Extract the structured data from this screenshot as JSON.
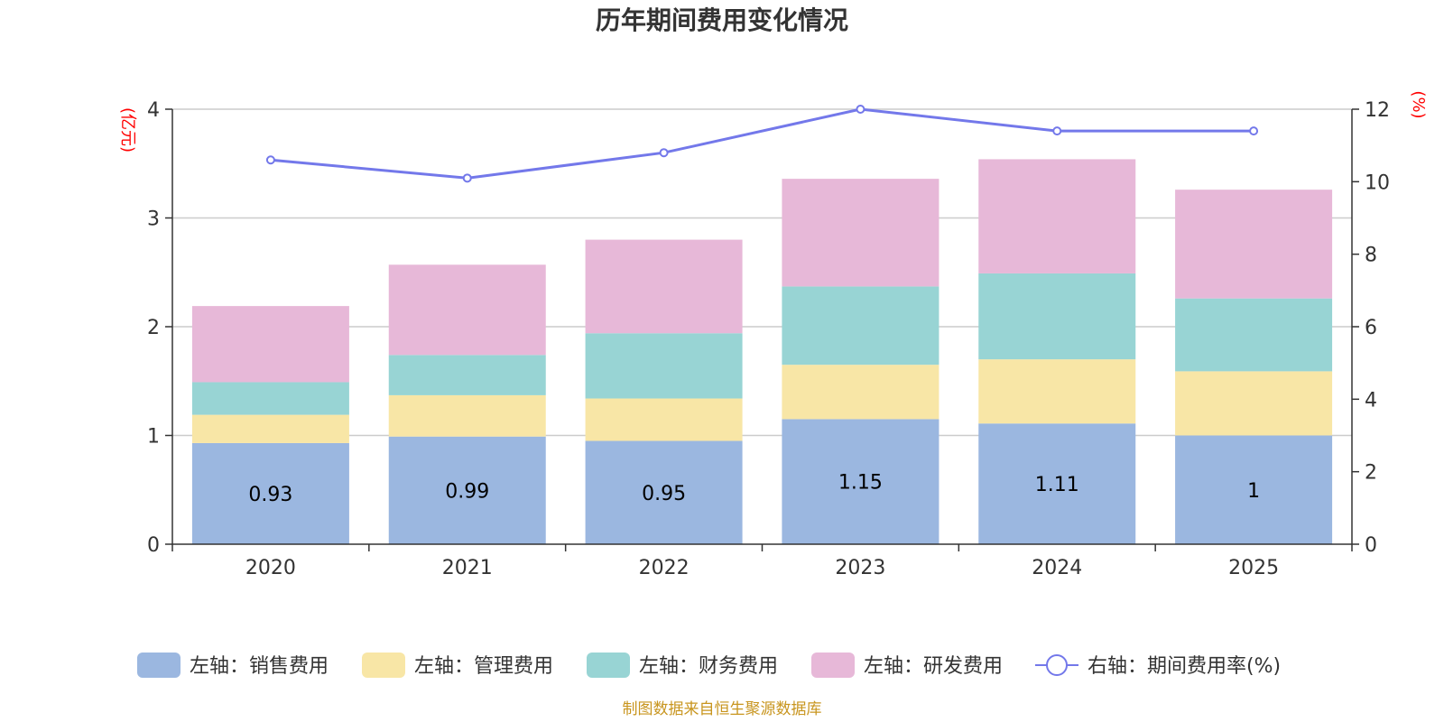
{
  "chart_data": {
    "type": "bar",
    "title": "历年期间费用变化情况",
    "categories": [
      "2020",
      "2021",
      "2022",
      "2023",
      "2024",
      "2025"
    ],
    "left_axis": {
      "unit": "(亿元)",
      "ylim": [
        0,
        4
      ],
      "ticks": [
        "0",
        "1",
        "2",
        "3",
        "4"
      ]
    },
    "right_axis": {
      "unit": "(%)",
      "ylim": [
        0,
        12
      ],
      "ticks": [
        "0",
        "2",
        "4",
        "6",
        "8",
        "10",
        "12"
      ]
    },
    "series": [
      {
        "name": "左轴：销售费用",
        "type": "bar",
        "axis": "left",
        "color": "#9bb7e0",
        "values": [
          0.93,
          0.99,
          0.95,
          1.15,
          1.11,
          1.0
        ],
        "labels": [
          "0.93",
          "0.99",
          "0.95",
          "1.15",
          "1.11",
          "1"
        ]
      },
      {
        "name": "左轴：管理费用",
        "type": "bar",
        "axis": "left",
        "color": "#f8e6a6",
        "values": [
          0.26,
          0.38,
          0.39,
          0.5,
          0.59,
          0.59
        ]
      },
      {
        "name": "左轴：财务费用",
        "type": "bar",
        "axis": "left",
        "color": "#98d4d4",
        "values": [
          0.3,
          0.37,
          0.6,
          0.72,
          0.79,
          0.67
        ]
      },
      {
        "name": "左轴：研发费用",
        "type": "bar",
        "axis": "left",
        "color": "#e7b8d8",
        "values": [
          0.7,
          0.83,
          0.86,
          0.99,
          1.05,
          1.0
        ]
      },
      {
        "name": "右轴：期间费用率(%)",
        "type": "line",
        "axis": "right",
        "color": "#7378ea",
        "values": [
          10.6,
          10.1,
          10.8,
          12.0,
          11.4,
          11.4
        ]
      }
    ],
    "legend_position": "bottom",
    "source_note": "制图数据来自恒生聚源数据库"
  }
}
